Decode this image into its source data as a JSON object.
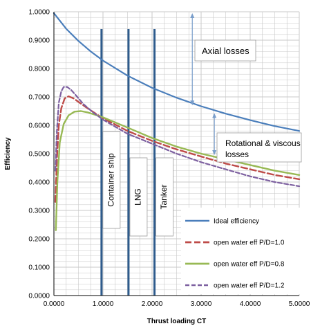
{
  "chart_data": {
    "type": "line",
    "title": "",
    "xlabel": "Thrust loading CT",
    "ylabel": "Efficiency",
    "xlim": [
      0,
      5
    ],
    "ylim": [
      0,
      1
    ],
    "x_ticks": [
      "0.0000",
      "1.0000",
      "2.0000",
      "3.0000",
      "4.0000",
      "5.0000"
    ],
    "y_ticks": [
      "0.0000",
      "0.1000",
      "0.2000",
      "0.3000",
      "0.4000",
      "0.5000",
      "0.6000",
      "0.7000",
      "0.8000",
      "0.9000",
      "1.0000"
    ],
    "grid": true,
    "legend_position": "bottom-right",
    "colors": {
      "ideal": "#4a7ebb",
      "pd10": "#be4b48",
      "pd08": "#98b954",
      "pd12": "#7d60a0",
      "markers": "#2e5b8c",
      "grid": "#c8c8c8"
    },
    "series": [
      {
        "name": "Ideal efficiency",
        "style": "solid",
        "x": [
          0.0,
          0.25,
          0.5,
          0.75,
          1.0,
          1.5,
          2.0,
          2.5,
          3.0,
          3.5,
          4.0,
          4.5,
          5.0
        ],
        "y": [
          0.995,
          0.94,
          0.897,
          0.86,
          0.828,
          0.775,
          0.732,
          0.697,
          0.667,
          0.641,
          0.618,
          0.597,
          0.58
        ]
      },
      {
        "name": "open water eff P/D=1.0",
        "style": "dash",
        "x": [
          0.03,
          0.06,
          0.1,
          0.15,
          0.22,
          0.3,
          0.4,
          0.55,
          0.7,
          1.0,
          1.5,
          2.0,
          2.5,
          3.0,
          3.5,
          4.0,
          4.5,
          5.0
        ],
        "y": [
          0.33,
          0.48,
          0.6,
          0.66,
          0.695,
          0.702,
          0.695,
          0.676,
          0.658,
          0.625,
          0.58,
          0.545,
          0.515,
          0.49,
          0.465,
          0.445,
          0.425,
          0.41
        ]
      },
      {
        "name": "open water eff P/D=0.8",
        "style": "solid",
        "x": [
          0.04,
          0.07,
          0.12,
          0.2,
          0.3,
          0.42,
          0.55,
          0.7,
          1.0,
          1.5,
          2.0,
          2.5,
          3.0,
          3.5,
          4.0,
          4.5,
          5.0
        ],
        "y": [
          0.23,
          0.4,
          0.54,
          0.605,
          0.635,
          0.648,
          0.65,
          0.645,
          0.628,
          0.592,
          0.555,
          0.525,
          0.5,
          0.48,
          0.46,
          0.44,
          0.425
        ]
      },
      {
        "name": "open water eff P/D=1.2",
        "style": "dash",
        "x": [
          0.03,
          0.06,
          0.1,
          0.15,
          0.2,
          0.27,
          0.35,
          0.45,
          0.6,
          0.8,
          1.0,
          1.5,
          2.0,
          2.5,
          3.0,
          3.5,
          4.0,
          4.5,
          5.0
        ],
        "y": [
          0.44,
          0.58,
          0.68,
          0.72,
          0.735,
          0.735,
          0.725,
          0.705,
          0.675,
          0.645,
          0.62,
          0.57,
          0.535,
          0.5,
          0.47,
          0.445,
          0.42,
          0.4,
          0.385
        ]
      }
    ],
    "markers": [
      {
        "label": "Container ship",
        "x": 0.97
      },
      {
        "label": "LNG",
        "x": 1.52
      },
      {
        "label": "Tanker",
        "x": 2.05
      }
    ],
    "annotations": {
      "axial": {
        "text": "Axial losses",
        "x": 2.82,
        "y_top": 0.995,
        "y_bottom": 0.67
      },
      "rotational": {
        "lines": [
          "Rotational & viscous",
          "losses"
        ],
        "x": 3.27,
        "y_top": 0.643,
        "y_bottom": 0.495
      }
    }
  }
}
